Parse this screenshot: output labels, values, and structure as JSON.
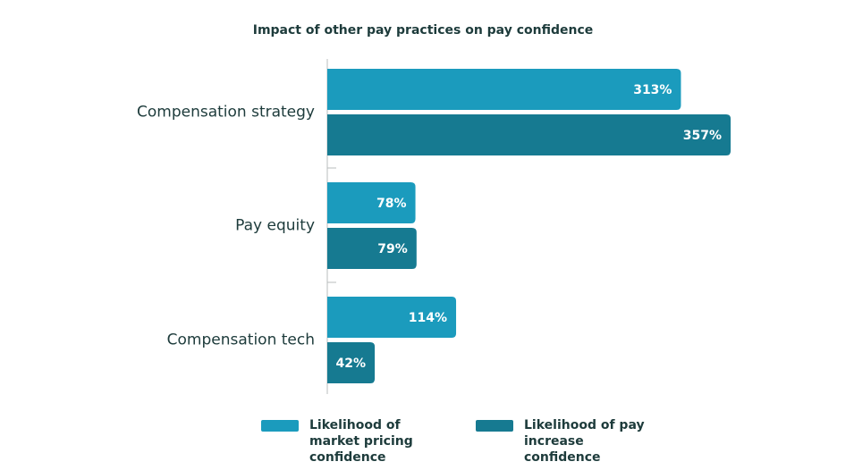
{
  "chart_data": {
    "type": "bar",
    "orientation": "horizontal",
    "title": "Impact of other pay practices on pay confidence",
    "categories": [
      "Compensation strategy",
      "Pay equity",
      "Compensation tech"
    ],
    "series": [
      {
        "name": "Likelihood of market pricing confidence",
        "color": "#1b9bbd",
        "values": [
          313,
          78,
          114
        ],
        "value_labels": [
          "313%",
          "78%",
          "114%"
        ]
      },
      {
        "name": "Likelihood of pay increase confidence",
        "color": "#167a91",
        "values": [
          357,
          79,
          42
        ],
        "value_labels": [
          "357%",
          "79%",
          "42%"
        ]
      }
    ]
  }
}
